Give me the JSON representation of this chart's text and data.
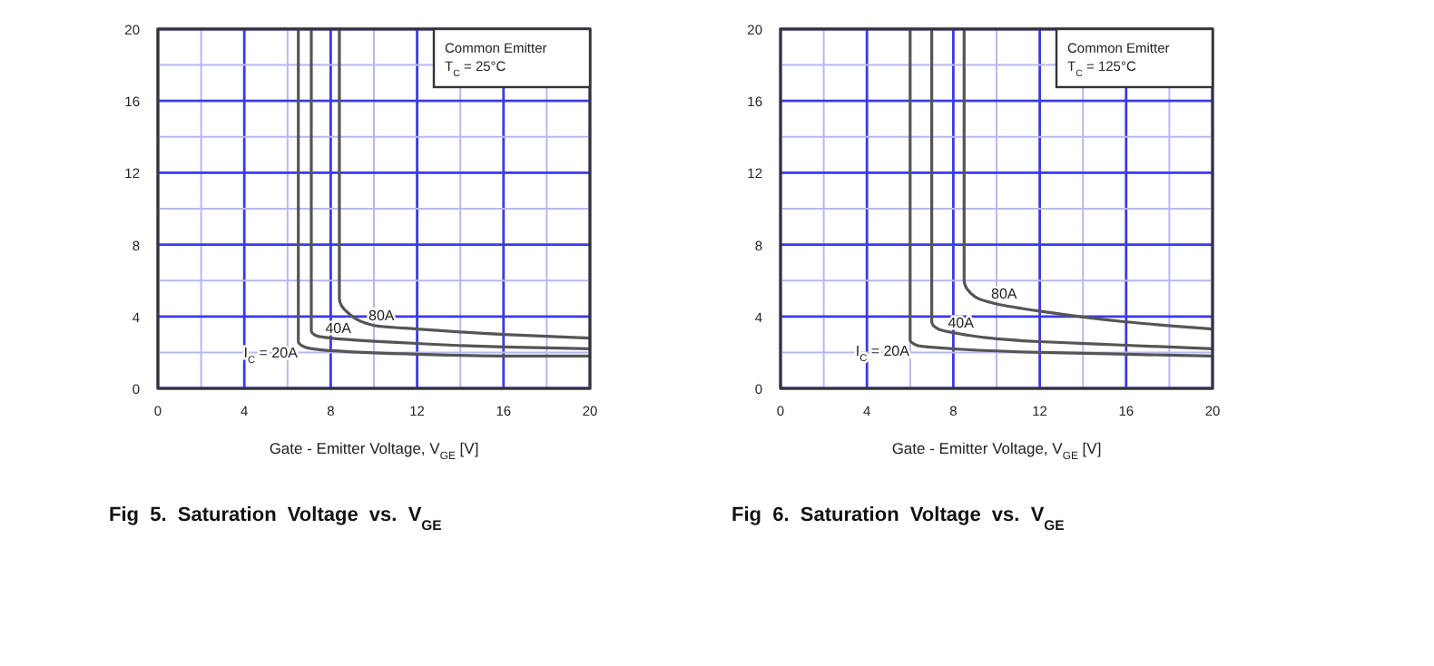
{
  "chart_data": [
    {
      "type": "line",
      "title": "Fig  5.  Saturation  Voltage  vs.  V$_{GE}$",
      "xlabel": "Gate - Emitter Voltage, V$_{GE}$ [V]",
      "annotations": [
        "Common Emitter",
        "T$_{C}$ = 25°C"
      ],
      "xlim": [
        0,
        20
      ],
      "ylim": [
        0,
        20
      ],
      "xticks": [
        0,
        {
          "value": 2,
          "label": null
        },
        4,
        {
          "value": 6,
          "label": null
        },
        8,
        {
          "value": 10,
          "label": null
        },
        12,
        {
          "value": 14,
          "label": null
        },
        16,
        {
          "value": 18,
          "label": null
        },
        20
      ],
      "yticks": [
        0,
        {
          "value": 2,
          "label": null
        },
        4,
        {
          "value": 6,
          "label": null
        },
        8,
        {
          "value": 10,
          "label": null
        },
        12,
        {
          "value": 14,
          "label": null
        },
        16,
        {
          "value": 18,
          "label": null
        },
        20
      ],
      "grid": true,
      "series": [
        {
          "name": "I$_{C}$ = 20A",
          "color": "#555555",
          "x": [
            6.5,
            6.5,
            6.8,
            8,
            12,
            16,
            20
          ],
          "values": [
            20,
            2.6,
            2.3,
            2.1,
            1.9,
            1.8,
            1.8
          ]
        },
        {
          "name": "40A",
          "color": "#555555",
          "x": [
            7.1,
            7.1,
            7.4,
            8,
            12,
            16,
            20
          ],
          "values": [
            20,
            3.2,
            2.9,
            2.8,
            2.5,
            2.3,
            2.2
          ]
        },
        {
          "name": "80A",
          "color": "#555555",
          "x": [
            8.4,
            8.4,
            8.8,
            10,
            12,
            16,
            20
          ],
          "values": [
            20,
            5,
            4.2,
            3.5,
            3.3,
            3,
            2.8
          ]
        }
      ]
    },
    {
      "type": "line",
      "title": "Fig  6.  Saturation  Voltage  vs.  V$_{GE}$",
      "xlabel": "Gate - Emitter Voltage, V$_{GE}$ [V]",
      "annotations": [
        "Common Emitter",
        "T$_{C}$ = 125°C"
      ],
      "xlim": [
        0,
        20
      ],
      "ylim": [
        0,
        20
      ],
      "xticks": [
        0,
        {
          "value": 2,
          "label": null
        },
        4,
        {
          "value": 6,
          "label": null
        },
        8,
        {
          "value": 10,
          "label": null
        },
        12,
        {
          "value": 14,
          "label": null
        },
        16,
        {
          "value": 18,
          "label": null
        },
        20
      ],
      "yticks": [
        0,
        {
          "value": 2,
          "label": null
        },
        4,
        {
          "value": 6,
          "label": null
        },
        8,
        {
          "value": 10,
          "label": null
        },
        12,
        {
          "value": 14,
          "label": null
        },
        16,
        {
          "value": 18,
          "label": null
        },
        20
      ],
      "grid": true,
      "series": [
        {
          "name": "I$_{C}$ = 20A",
          "color": "#555555",
          "x": [
            6,
            6,
            6.3,
            8,
            12,
            16,
            20
          ],
          "values": [
            20,
            2.7,
            2.4,
            2.2,
            2,
            1.9,
            1.8
          ]
        },
        {
          "name": "40A",
          "color": "#555555",
          "x": [
            7,
            7,
            7.3,
            8,
            12,
            16,
            20
          ],
          "values": [
            20,
            3.7,
            3.3,
            3.1,
            2.6,
            2.4,
            2.2
          ]
        },
        {
          "name": "80A",
          "color": "#555555",
          "x": [
            8.5,
            8.5,
            9,
            10,
            12,
            16,
            20
          ],
          "values": [
            20,
            6,
            5.1,
            4.7,
            4.3,
            3.7,
            3.3
          ]
        }
      ]
    }
  ]
}
